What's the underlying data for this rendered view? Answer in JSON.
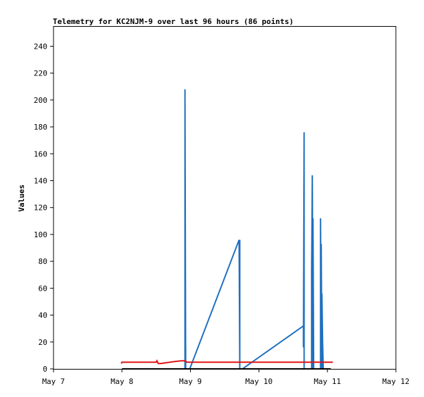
{
  "chart_data": {
    "type": "line",
    "title": "Telemetry for KC2NJM-9 over last 96 hours (86 points)",
    "xlabel": "",
    "ylabel": "Values",
    "x_ticks": [
      "May 7",
      "May 8",
      "May 9",
      "May 10",
      "May 11",
      "May 12"
    ],
    "x_range_days": [
      7,
      12
    ],
    "y_ticks": [
      0,
      20,
      40,
      60,
      80,
      100,
      120,
      140,
      160,
      180,
      200,
      220,
      240
    ],
    "ylim": [
      0,
      255
    ],
    "grid": false,
    "colors": {
      "series_blue": "#1f6fbf",
      "series_red": "#e01010",
      "series_black": "#000000",
      "axis": "#000000"
    },
    "series": [
      {
        "color": "#1f6fbf",
        "points": [
          [
            8.92,
            0
          ],
          [
            8.92,
            208
          ],
          [
            8.93,
            0
          ],
          [
            8.93,
            16
          ],
          [
            8.93,
            0
          ],
          [
            8.99,
            0
          ],
          [
            9.71,
            96
          ],
          [
            9.72,
            0
          ],
          [
            9.72,
            96
          ],
          [
            9.72,
            0
          ],
          [
            9.76,
            0
          ],
          [
            10.65,
            32
          ],
          [
            10.65,
            16
          ],
          [
            10.66,
            176
          ],
          [
            10.66,
            0
          ],
          [
            10.77,
            0
          ],
          [
            10.77,
            72
          ],
          [
            10.78,
            144
          ],
          [
            10.79,
            0
          ],
          [
            10.79,
            112
          ],
          [
            10.8,
            0
          ],
          [
            10.9,
            0
          ],
          [
            10.9,
            112
          ],
          [
            10.91,
            0
          ],
          [
            10.91,
            93
          ],
          [
            10.92,
            0
          ],
          [
            10.92,
            56
          ],
          [
            10.93,
            20
          ],
          [
            10.94,
            0
          ]
        ]
      },
      {
        "color": "#e01010",
        "points": [
          [
            7.99,
            4
          ],
          [
            8.0,
            5
          ],
          [
            8.5,
            5
          ],
          [
            8.51,
            6
          ],
          [
            8.53,
            4
          ],
          [
            8.56,
            4
          ],
          [
            8.7,
            5
          ],
          [
            8.86,
            6
          ],
          [
            8.92,
            6
          ],
          [
            8.95,
            5
          ],
          [
            9.5,
            5
          ],
          [
            10.0,
            5
          ],
          [
            10.5,
            5
          ],
          [
            11.0,
            5
          ],
          [
            11.08,
            5
          ]
        ]
      },
      {
        "color": "#000000",
        "points": [
          [
            8.0,
            0
          ],
          [
            11.05,
            0
          ]
        ]
      }
    ]
  }
}
